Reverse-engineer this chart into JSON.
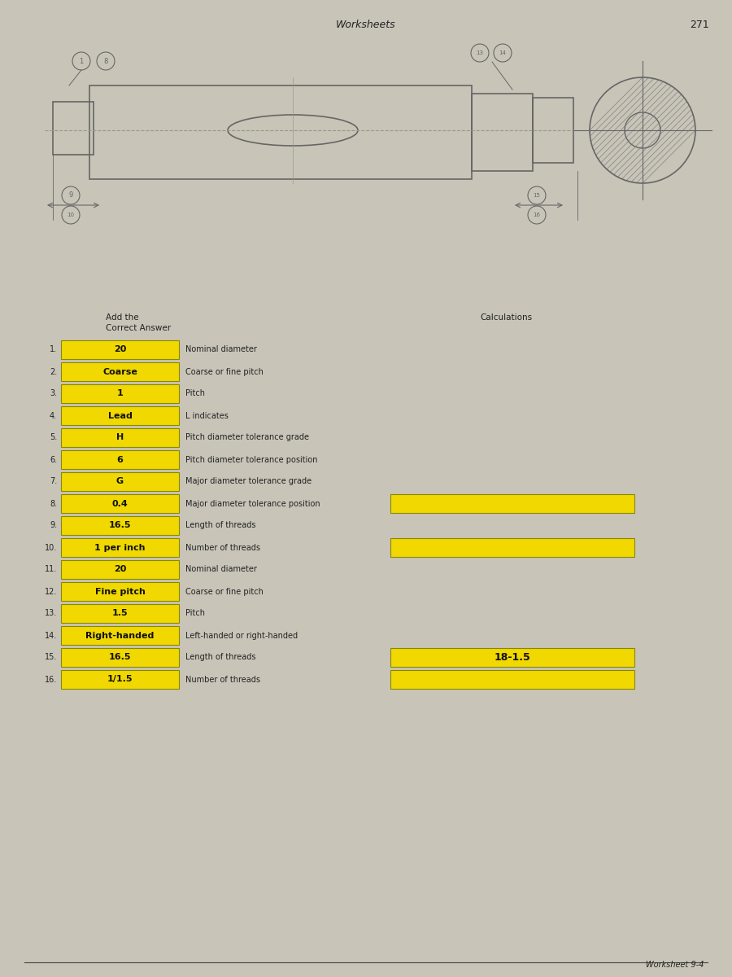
{
  "title": "Worksheets",
  "page_number": "271",
  "footer": "Worksheet 9-4",
  "bg_color": "#c8c4b8",
  "header_col1": "Add the",
  "header_col2": "Correct Answer",
  "header_col3": "Calculations",
  "box_color": "#f0d800",
  "box_border": "#888800",
  "text_color": "#222222",
  "draw_color": "#666666",
  "rows": [
    {
      "num": "1.",
      "answer": "20",
      "label": "Nominal diameter"
    },
    {
      "num": "2.",
      "answer": "Coarse",
      "label": "Coarse or fine pitch"
    },
    {
      "num": "3.",
      "answer": "1",
      "label": "Pitch"
    },
    {
      "num": "4.",
      "answer": "Lead",
      "label": "L indicates"
    },
    {
      "num": "5.",
      "answer": "H",
      "label": "Pitch diameter tolerance grade"
    },
    {
      "num": "6.",
      "answer": "6",
      "label": "Pitch diameter tolerance position"
    },
    {
      "num": "7.",
      "answer": "G",
      "label": "Major diameter tolerance grade"
    },
    {
      "num": "8.",
      "answer": "0.4",
      "label": "Major diameter tolerance position"
    },
    {
      "num": "9.",
      "answer": "16.5",
      "label": "Length of threads"
    },
    {
      "num": "10.",
      "answer": "1 per inch",
      "label": "Number of threads"
    },
    {
      "num": "11.",
      "answer": "20",
      "label": "Nominal diameter"
    },
    {
      "num": "12.",
      "answer": "Fine pitch",
      "label": "Coarse or fine pitch"
    },
    {
      "num": "13.",
      "answer": "1.5",
      "label": "Pitch"
    },
    {
      "num": "14.",
      "answer": "Right-handed",
      "label": "Left-handed or right-handed"
    },
    {
      "num": "15.",
      "answer": "16.5",
      "label": "Length of threads"
    },
    {
      "num": "16.",
      "answer": "1/1.5",
      "label": "Number of threads"
    }
  ],
  "calc_boxes": [
    {
      "row": 8,
      "text": ""
    },
    {
      "row": 10,
      "text": ""
    },
    {
      "row": 15,
      "text": "18-1.5"
    },
    {
      "row": 16,
      "text": ""
    }
  ]
}
